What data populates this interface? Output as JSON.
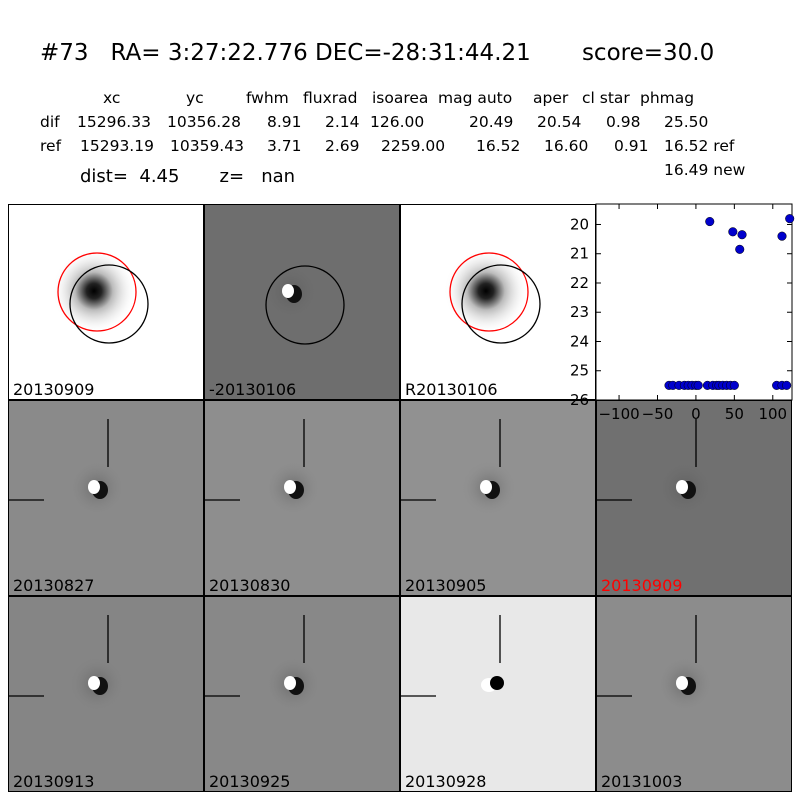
{
  "header": {
    "title": "#73   RA= 3:27:22.776 DEC=-28:31:44.21       score=30.0",
    "columns": [
      "xc",
      "yc",
      "fwhm",
      "fluxrad",
      "isoarea",
      "mag auto",
      "aper",
      "cl star",
      "phmag"
    ],
    "rows": [
      {
        "label": "dif",
        "values": [
          "15296.33",
          "10356.28",
          "8.91",
          "2.14",
          "126.00",
          "20.49",
          "20.54",
          "0.98",
          "25.50"
        ]
      },
      {
        "label": "ref",
        "values": [
          "15293.19",
          "10359.43",
          "3.71",
          "2.69",
          "2259.00",
          "16.52",
          "16.60",
          "0.91",
          "16.52 ref"
        ]
      }
    ],
    "extra_phmag": "16.49 new",
    "dist_line": "dist=  4.45       z=   nan"
  },
  "top_panels": [
    {
      "label": "20130909",
      "bg": "#ffffff",
      "style": "ref"
    },
    {
      "label": "-20130106",
      "bg": "#6e6e6e",
      "style": "diff-circle"
    },
    {
      "label": "R20130106",
      "bg": "#ffffff",
      "style": "ref"
    }
  ],
  "grid_panels": [
    {
      "label": "20130827",
      "bg": "#8a8a8a",
      "label_color": "#000000"
    },
    {
      "label": "20130830",
      "bg": "#8e8e8e",
      "label_color": "#000000"
    },
    {
      "label": "20130905",
      "bg": "#919191",
      "label_color": "#000000"
    },
    {
      "label": "20130909",
      "bg": "#707070",
      "label_color": "#ff0000"
    },
    {
      "label": "20130913",
      "bg": "#858585",
      "label_color": "#000000"
    },
    {
      "label": "20130925",
      "bg": "#888888",
      "label_color": "#000000"
    },
    {
      "label": "20130928",
      "bg": "#e8e8e8",
      "label_color": "#000000"
    },
    {
      "label": "20131003",
      "bg": "#8c8c8c",
      "label_color": "#000000"
    }
  ],
  "chart_data": {
    "type": "scatter",
    "xlim": [
      -130,
      125
    ],
    "ylim": [
      26,
      19.3
    ],
    "xticks": [
      -100,
      -50,
      0,
      50,
      100
    ],
    "xtick_labels": [
      "−100",
      "−50",
      "0",
      "50",
      "100"
    ],
    "yticks": [
      20,
      21,
      22,
      23,
      24,
      25,
      26
    ],
    "color": "#0000cc",
    "points": [
      [
        -35,
        25.5
      ],
      [
        -30,
        25.5
      ],
      [
        -22,
        25.5
      ],
      [
        -15,
        25.5
      ],
      [
        -10,
        25.5
      ],
      [
        -5,
        25.5
      ],
      [
        0,
        25.5
      ],
      [
        3,
        25.5
      ],
      [
        15,
        25.5
      ],
      [
        22,
        25.5
      ],
      [
        27,
        25.5
      ],
      [
        30,
        25.5
      ],
      [
        35,
        25.5
      ],
      [
        40,
        25.5
      ],
      [
        45,
        25.5
      ],
      [
        50,
        25.5
      ],
      [
        105,
        25.5
      ],
      [
        112,
        25.5
      ],
      [
        118,
        25.5
      ],
      [
        18,
        19.9
      ],
      [
        48,
        20.25
      ],
      [
        60,
        20.35
      ],
      [
        57,
        20.85
      ],
      [
        112,
        20.4
      ],
      [
        122,
        19.8
      ]
    ]
  }
}
